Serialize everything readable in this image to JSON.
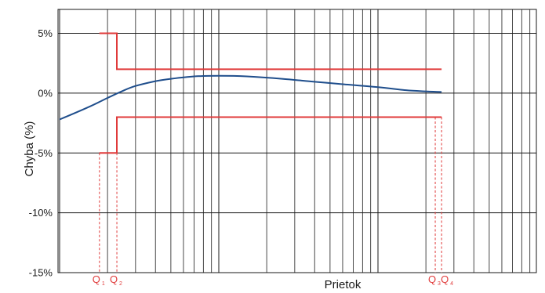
{
  "chart_data": {
    "type": "line",
    "xlabel": "Prietok",
    "ylabel": "Chyba (%)",
    "ylim": [
      -15,
      7
    ],
    "y_ticks": [
      {
        "value": 5,
        "label": "5%"
      },
      {
        "value": 0,
        "label": "0%"
      },
      {
        "value": -5,
        "label": "-5%"
      },
      {
        "value": -10,
        "label": "-10%"
      },
      {
        "value": -15,
        "label": "-15%"
      }
    ],
    "x_scale": "log",
    "x_range_decades": [
      0,
      3
    ],
    "grid": true,
    "colors": {
      "error_curve": "#1f4e8c",
      "limits": "#e03a3a",
      "grid": "#1a1a1a"
    },
    "markers": [
      {
        "name": "Q",
        "sub": "1",
        "x": 1.78
      },
      {
        "name": "Q",
        "sub": "2",
        "x": 2.29
      },
      {
        "name": "Q",
        "sub": "3",
        "x": 229
      },
      {
        "name": "Q",
        "sub": "4",
        "x": 251
      }
    ],
    "series": [
      {
        "kind": "error-curve",
        "x": [
          1.0,
          1.5,
          2.0,
          2.5,
          3.0,
          4.0,
          5.0,
          7.0,
          10.0,
          15.0,
          25.0,
          40.0,
          60.0,
          100.0,
          150.0,
          200.0,
          251.0
        ],
        "y": [
          -2.2,
          -1.2,
          -0.4,
          0.2,
          0.6,
          1.0,
          1.2,
          1.4,
          1.45,
          1.4,
          1.2,
          0.95,
          0.75,
          0.5,
          0.25,
          0.15,
          0.1
        ]
      },
      {
        "kind": "upper-limit",
        "x": [
          1.78,
          2.29,
          2.29,
          251.0
        ],
        "y": [
          5,
          5,
          2,
          2
        ]
      },
      {
        "kind": "lower-limit",
        "x": [
          1.78,
          2.29,
          2.29,
          251.0
        ],
        "y": [
          -5,
          -5,
          -2,
          -2
        ]
      }
    ]
  }
}
